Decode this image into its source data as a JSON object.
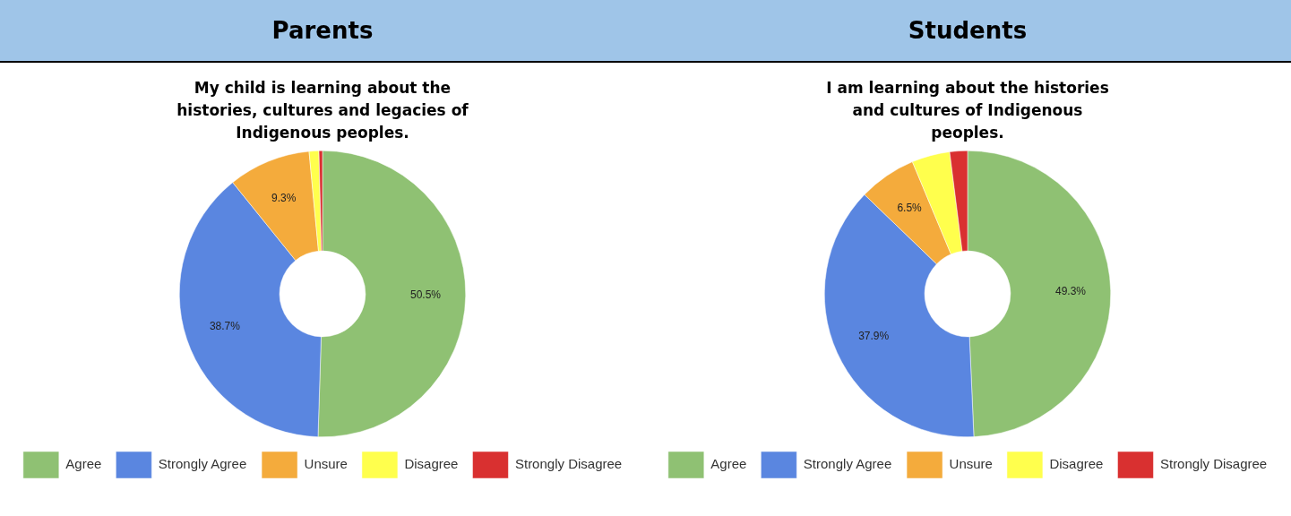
{
  "chart_data": [
    {
      "type": "donut",
      "title": "Parents",
      "subtitle": "My child is learning about the histories, cultures and legacies of Indigenous peoples.",
      "categories": [
        "Agree",
        "Strongly Agree",
        "Unsure",
        "Disagree",
        "Strongly Disagree"
      ],
      "values": [
        50.5,
        38.7,
        9.3,
        1.1,
        0.4
      ],
      "colors": [
        "#8fc173",
        "#5a86e0",
        "#f4ab3c",
        "#ffff4d",
        "#d93030"
      ],
      "value_labels": [
        "50.5%",
        "38.7%",
        "9.3%",
        null,
        null
      ],
      "legend": "bottom"
    },
    {
      "type": "donut",
      "title": "Students",
      "subtitle": "I am learning about the histories and cultures of Indigenous peoples.",
      "categories": [
        "Agree",
        "Strongly Agree",
        "Unsure",
        "Disagree",
        "Strongly Disagree"
      ],
      "values": [
        49.3,
        37.9,
        6.5,
        4.3,
        2.0
      ],
      "colors": [
        "#8fc173",
        "#5a86e0",
        "#f4ab3c",
        "#ffff4d",
        "#d93030"
      ],
      "value_labels": [
        "49.3%",
        "37.9%",
        "6.5%",
        null,
        null
      ],
      "legend": "bottom"
    }
  ]
}
